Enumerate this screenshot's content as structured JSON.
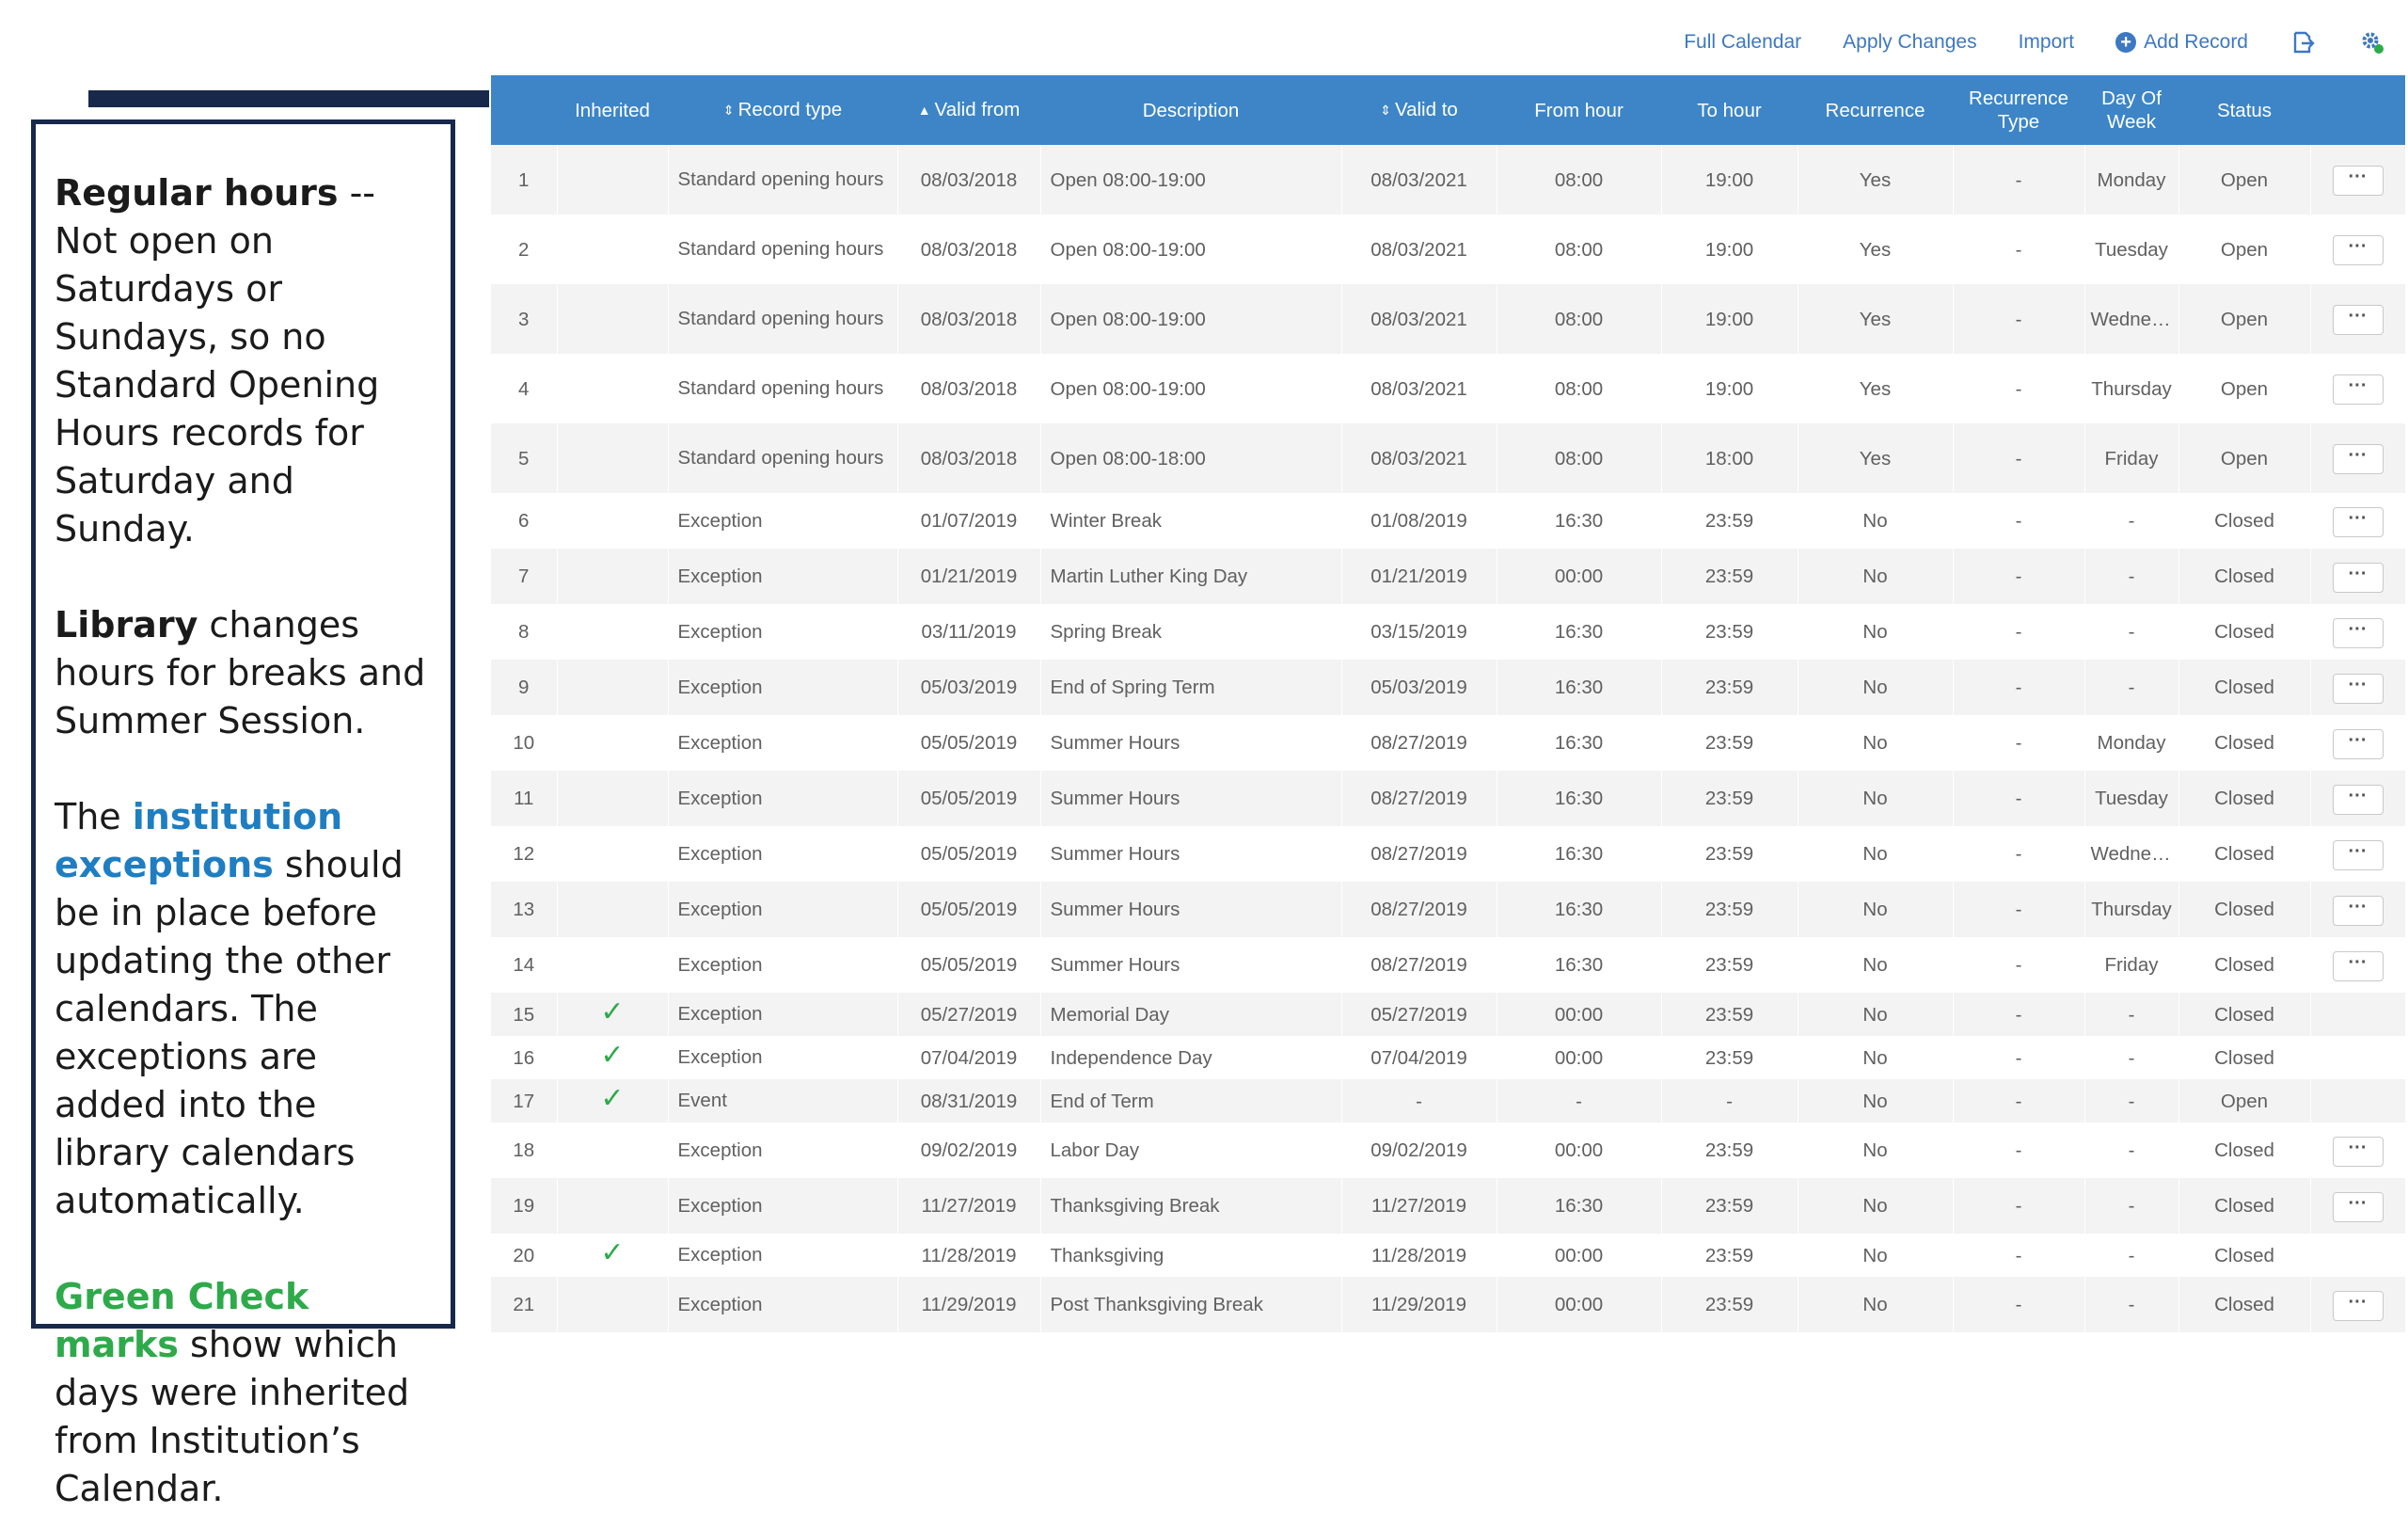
{
  "toolbar": {
    "full_calendar": "Full Calendar",
    "apply_changes": "Apply Changes",
    "import": "Import",
    "add_record": "Add Record",
    "export_icon": "export-icon",
    "settings_icon": "gear-icon"
  },
  "colors": {
    "header_blue": "#3d85c6",
    "link_blue": "#3d78c2",
    "panel_navy": "#17284b",
    "check_green": "#2eaa4a",
    "institution_blue": "#1f7ec2"
  },
  "panel": {
    "p1_bold": "Regular hours",
    "p1_text": " -- Not open on Saturdays or Sundays, so no Standard Opening Hours records for Saturday and Sunday.",
    "p2_bold": "Library",
    "p2_text": " changes hours for breaks and Summer Session.",
    "p3_a": "The ",
    "p3_blue": "institution exceptions",
    "p3_b": " should be in place before updating the other calendars. The exceptions are added into the library calendars automatically.",
    "p4_green": "Green Check marks",
    "p4_text": " show which days were inherited from Institution’s Calendar."
  },
  "table": {
    "headers": {
      "inherited": "Inherited",
      "record_type": "Record type",
      "valid_from": "Valid from",
      "description": "Description",
      "valid_to": "Valid to",
      "from_hour": "From hour",
      "to_hour": "To hour",
      "recurrence": "Recurrence",
      "recurrence_type_1": "Recurrence",
      "recurrence_type_2": "Type",
      "day_of_week_1": "Day Of",
      "day_of_week_2": "Week",
      "status": "Status"
    },
    "check_glyph": "✓",
    "more_label": "···",
    "rows": [
      {
        "num": "1",
        "inherited": false,
        "record_type": "Standard opening hours",
        "valid_from": "08/03/2018",
        "description": "Open 08:00-19:00",
        "valid_to": "08/03/2021",
        "from_hour": "08:00",
        "to_hour": "19:00",
        "recurrence": "Yes",
        "recurrence_type": "-",
        "day_of_week": "Monday",
        "status": "Open",
        "has_menu": true
      },
      {
        "num": "2",
        "inherited": false,
        "record_type": "Standard opening hours",
        "valid_from": "08/03/2018",
        "description": "Open 08:00-19:00",
        "valid_to": "08/03/2021",
        "from_hour": "08:00",
        "to_hour": "19:00",
        "recurrence": "Yes",
        "recurrence_type": "-",
        "day_of_week": "Tuesday",
        "status": "Open",
        "has_menu": true
      },
      {
        "num": "3",
        "inherited": false,
        "record_type": "Standard opening hours",
        "valid_from": "08/03/2018",
        "description": "Open 08:00-19:00",
        "valid_to": "08/03/2021",
        "from_hour": "08:00",
        "to_hour": "19:00",
        "recurrence": "Yes",
        "recurrence_type": "-",
        "day_of_week": "Wednes...",
        "status": "Open",
        "has_menu": true
      },
      {
        "num": "4",
        "inherited": false,
        "record_type": "Standard opening hours",
        "valid_from": "08/03/2018",
        "description": "Open 08:00-19:00",
        "valid_to": "08/03/2021",
        "from_hour": "08:00",
        "to_hour": "19:00",
        "recurrence": "Yes",
        "recurrence_type": "-",
        "day_of_week": "Thursday",
        "status": "Open",
        "has_menu": true
      },
      {
        "num": "5",
        "inherited": false,
        "record_type": "Standard opening hours",
        "valid_from": "08/03/2018",
        "description": "Open 08:00-18:00",
        "valid_to": "08/03/2021",
        "from_hour": "08:00",
        "to_hour": "18:00",
        "recurrence": "Yes",
        "recurrence_type": "-",
        "day_of_week": "Friday",
        "status": "Open",
        "has_menu": true
      },
      {
        "num": "6",
        "inherited": false,
        "record_type": "Exception",
        "valid_from": "01/07/2019",
        "description": "Winter Break",
        "valid_to": "01/08/2019",
        "from_hour": "16:30",
        "to_hour": "23:59",
        "recurrence": "No",
        "recurrence_type": "-",
        "day_of_week": "-",
        "status": "Closed",
        "has_menu": true
      },
      {
        "num": "7",
        "inherited": false,
        "record_type": "Exception",
        "valid_from": "01/21/2019",
        "description": "Martin Luther King Day",
        "valid_to": "01/21/2019",
        "from_hour": "00:00",
        "to_hour": "23:59",
        "recurrence": "No",
        "recurrence_type": "-",
        "day_of_week": "-",
        "status": "Closed",
        "has_menu": true
      },
      {
        "num": "8",
        "inherited": false,
        "record_type": "Exception",
        "valid_from": "03/11/2019",
        "description": "Spring Break",
        "valid_to": "03/15/2019",
        "from_hour": "16:30",
        "to_hour": "23:59",
        "recurrence": "No",
        "recurrence_type": "-",
        "day_of_week": "-",
        "status": "Closed",
        "has_menu": true
      },
      {
        "num": "9",
        "inherited": false,
        "record_type": "Exception",
        "valid_from": "05/03/2019",
        "description": "End of Spring Term",
        "valid_to": "05/03/2019",
        "from_hour": "16:30",
        "to_hour": "23:59",
        "recurrence": "No",
        "recurrence_type": "-",
        "day_of_week": "-",
        "status": "Closed",
        "has_menu": true
      },
      {
        "num": "10",
        "inherited": false,
        "record_type": "Exception",
        "valid_from": "05/05/2019",
        "description": "Summer Hours",
        "valid_to": "08/27/2019",
        "from_hour": "16:30",
        "to_hour": "23:59",
        "recurrence": "No",
        "recurrence_type": "-",
        "day_of_week": "Monday",
        "status": "Closed",
        "has_menu": true
      },
      {
        "num": "11",
        "inherited": false,
        "record_type": "Exception",
        "valid_from": "05/05/2019",
        "description": "Summer Hours",
        "valid_to": "08/27/2019",
        "from_hour": "16:30",
        "to_hour": "23:59",
        "recurrence": "No",
        "recurrence_type": "-",
        "day_of_week": "Tuesday",
        "status": "Closed",
        "has_menu": true
      },
      {
        "num": "12",
        "inherited": false,
        "record_type": "Exception",
        "valid_from": "05/05/2019",
        "description": "Summer Hours",
        "valid_to": "08/27/2019",
        "from_hour": "16:30",
        "to_hour": "23:59",
        "recurrence": "No",
        "recurrence_type": "-",
        "day_of_week": "Wednes...",
        "status": "Closed",
        "has_menu": true
      },
      {
        "num": "13",
        "inherited": false,
        "record_type": "Exception",
        "valid_from": "05/05/2019",
        "description": "Summer Hours",
        "valid_to": "08/27/2019",
        "from_hour": "16:30",
        "to_hour": "23:59",
        "recurrence": "No",
        "recurrence_type": "-",
        "day_of_week": "Thursday",
        "status": "Closed",
        "has_menu": true
      },
      {
        "num": "14",
        "inherited": false,
        "record_type": "Exception",
        "valid_from": "05/05/2019",
        "description": "Summer Hours",
        "valid_to": "08/27/2019",
        "from_hour": "16:30",
        "to_hour": "23:59",
        "recurrence": "No",
        "recurrence_type": "-",
        "day_of_week": "Friday",
        "status": "Closed",
        "has_menu": true
      },
      {
        "num": "15",
        "inherited": true,
        "record_type": "Exception",
        "valid_from": "05/27/2019",
        "description": "Memorial Day",
        "valid_to": "05/27/2019",
        "from_hour": "00:00",
        "to_hour": "23:59",
        "recurrence": "No",
        "recurrence_type": "-",
        "day_of_week": "-",
        "status": "Closed",
        "has_menu": false
      },
      {
        "num": "16",
        "inherited": true,
        "record_type": "Exception",
        "valid_from": "07/04/2019",
        "description": "Independence Day",
        "valid_to": "07/04/2019",
        "from_hour": "00:00",
        "to_hour": "23:59",
        "recurrence": "No",
        "recurrence_type": "-",
        "day_of_week": "-",
        "status": "Closed",
        "has_menu": false
      },
      {
        "num": "17",
        "inherited": true,
        "record_type": "Event",
        "valid_from": "08/31/2019",
        "description": "End of Term",
        "valid_to": "-",
        "from_hour": "-",
        "to_hour": "-",
        "recurrence": "No",
        "recurrence_type": "-",
        "day_of_week": "-",
        "status": "Open",
        "has_menu": false
      },
      {
        "num": "18",
        "inherited": false,
        "record_type": "Exception",
        "valid_from": "09/02/2019",
        "description": "Labor Day",
        "valid_to": "09/02/2019",
        "from_hour": "00:00",
        "to_hour": "23:59",
        "recurrence": "No",
        "recurrence_type": "-",
        "day_of_week": "-",
        "status": "Closed",
        "has_menu": true
      },
      {
        "num": "19",
        "inherited": false,
        "record_type": "Exception",
        "valid_from": "11/27/2019",
        "description": "Thanksgiving Break",
        "valid_to": "11/27/2019",
        "from_hour": "16:30",
        "to_hour": "23:59",
        "recurrence": "No",
        "recurrence_type": "-",
        "day_of_week": "-",
        "status": "Closed",
        "has_menu": true
      },
      {
        "num": "20",
        "inherited": true,
        "record_type": "Exception",
        "valid_from": "11/28/2019",
        "description": "Thanksgiving",
        "valid_to": "11/28/2019",
        "from_hour": "00:00",
        "to_hour": "23:59",
        "recurrence": "No",
        "recurrence_type": "-",
        "day_of_week": "-",
        "status": "Closed",
        "has_menu": false
      },
      {
        "num": "21",
        "inherited": false,
        "record_type": "Exception",
        "valid_from": "11/29/2019",
        "description": "Post Thanksgiving Break",
        "valid_to": "11/29/2019",
        "from_hour": "00:00",
        "to_hour": "23:59",
        "recurrence": "No",
        "recurrence_type": "-",
        "day_of_week": "-",
        "status": "Closed",
        "has_menu": true
      }
    ]
  }
}
